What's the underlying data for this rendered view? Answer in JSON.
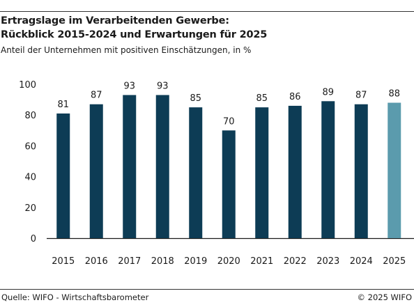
{
  "header": {
    "title_line1": "Ertragslage im Verarbeitenden Gewerbe:",
    "title_line2": "Rückblick 2015-2024 und Erwartungen für 2025",
    "subtitle": "Anteil der Unternehmen mit positiven Einschätzungen, in %"
  },
  "footer": {
    "source": "Quelle: WIFO - Wirtschaftsbarometer",
    "copyright": "© 2025 WIFO"
  },
  "colors": {
    "bar": "#0d3c55",
    "bar_forecast": "#5b9bad",
    "axis": "#1a1a1a",
    "rule": "#333333"
  },
  "chart_data": {
    "type": "bar",
    "categories": [
      "2015",
      "2016",
      "2017",
      "2018",
      "2019",
      "2020",
      "2021",
      "2022",
      "2023",
      "2024",
      "2025"
    ],
    "values": [
      81,
      87,
      93,
      93,
      85,
      70,
      85,
      86,
      89,
      87,
      88
    ],
    "forecast_categories": [
      "2025"
    ],
    "ylim": [
      0,
      100
    ],
    "yticks": [
      0,
      20,
      40,
      60,
      80,
      100
    ],
    "ytick_labels": [
      "0",
      "20",
      "40",
      "60",
      "80",
      "100"
    ],
    "grid": false,
    "xlabel": "",
    "ylabel": ""
  }
}
